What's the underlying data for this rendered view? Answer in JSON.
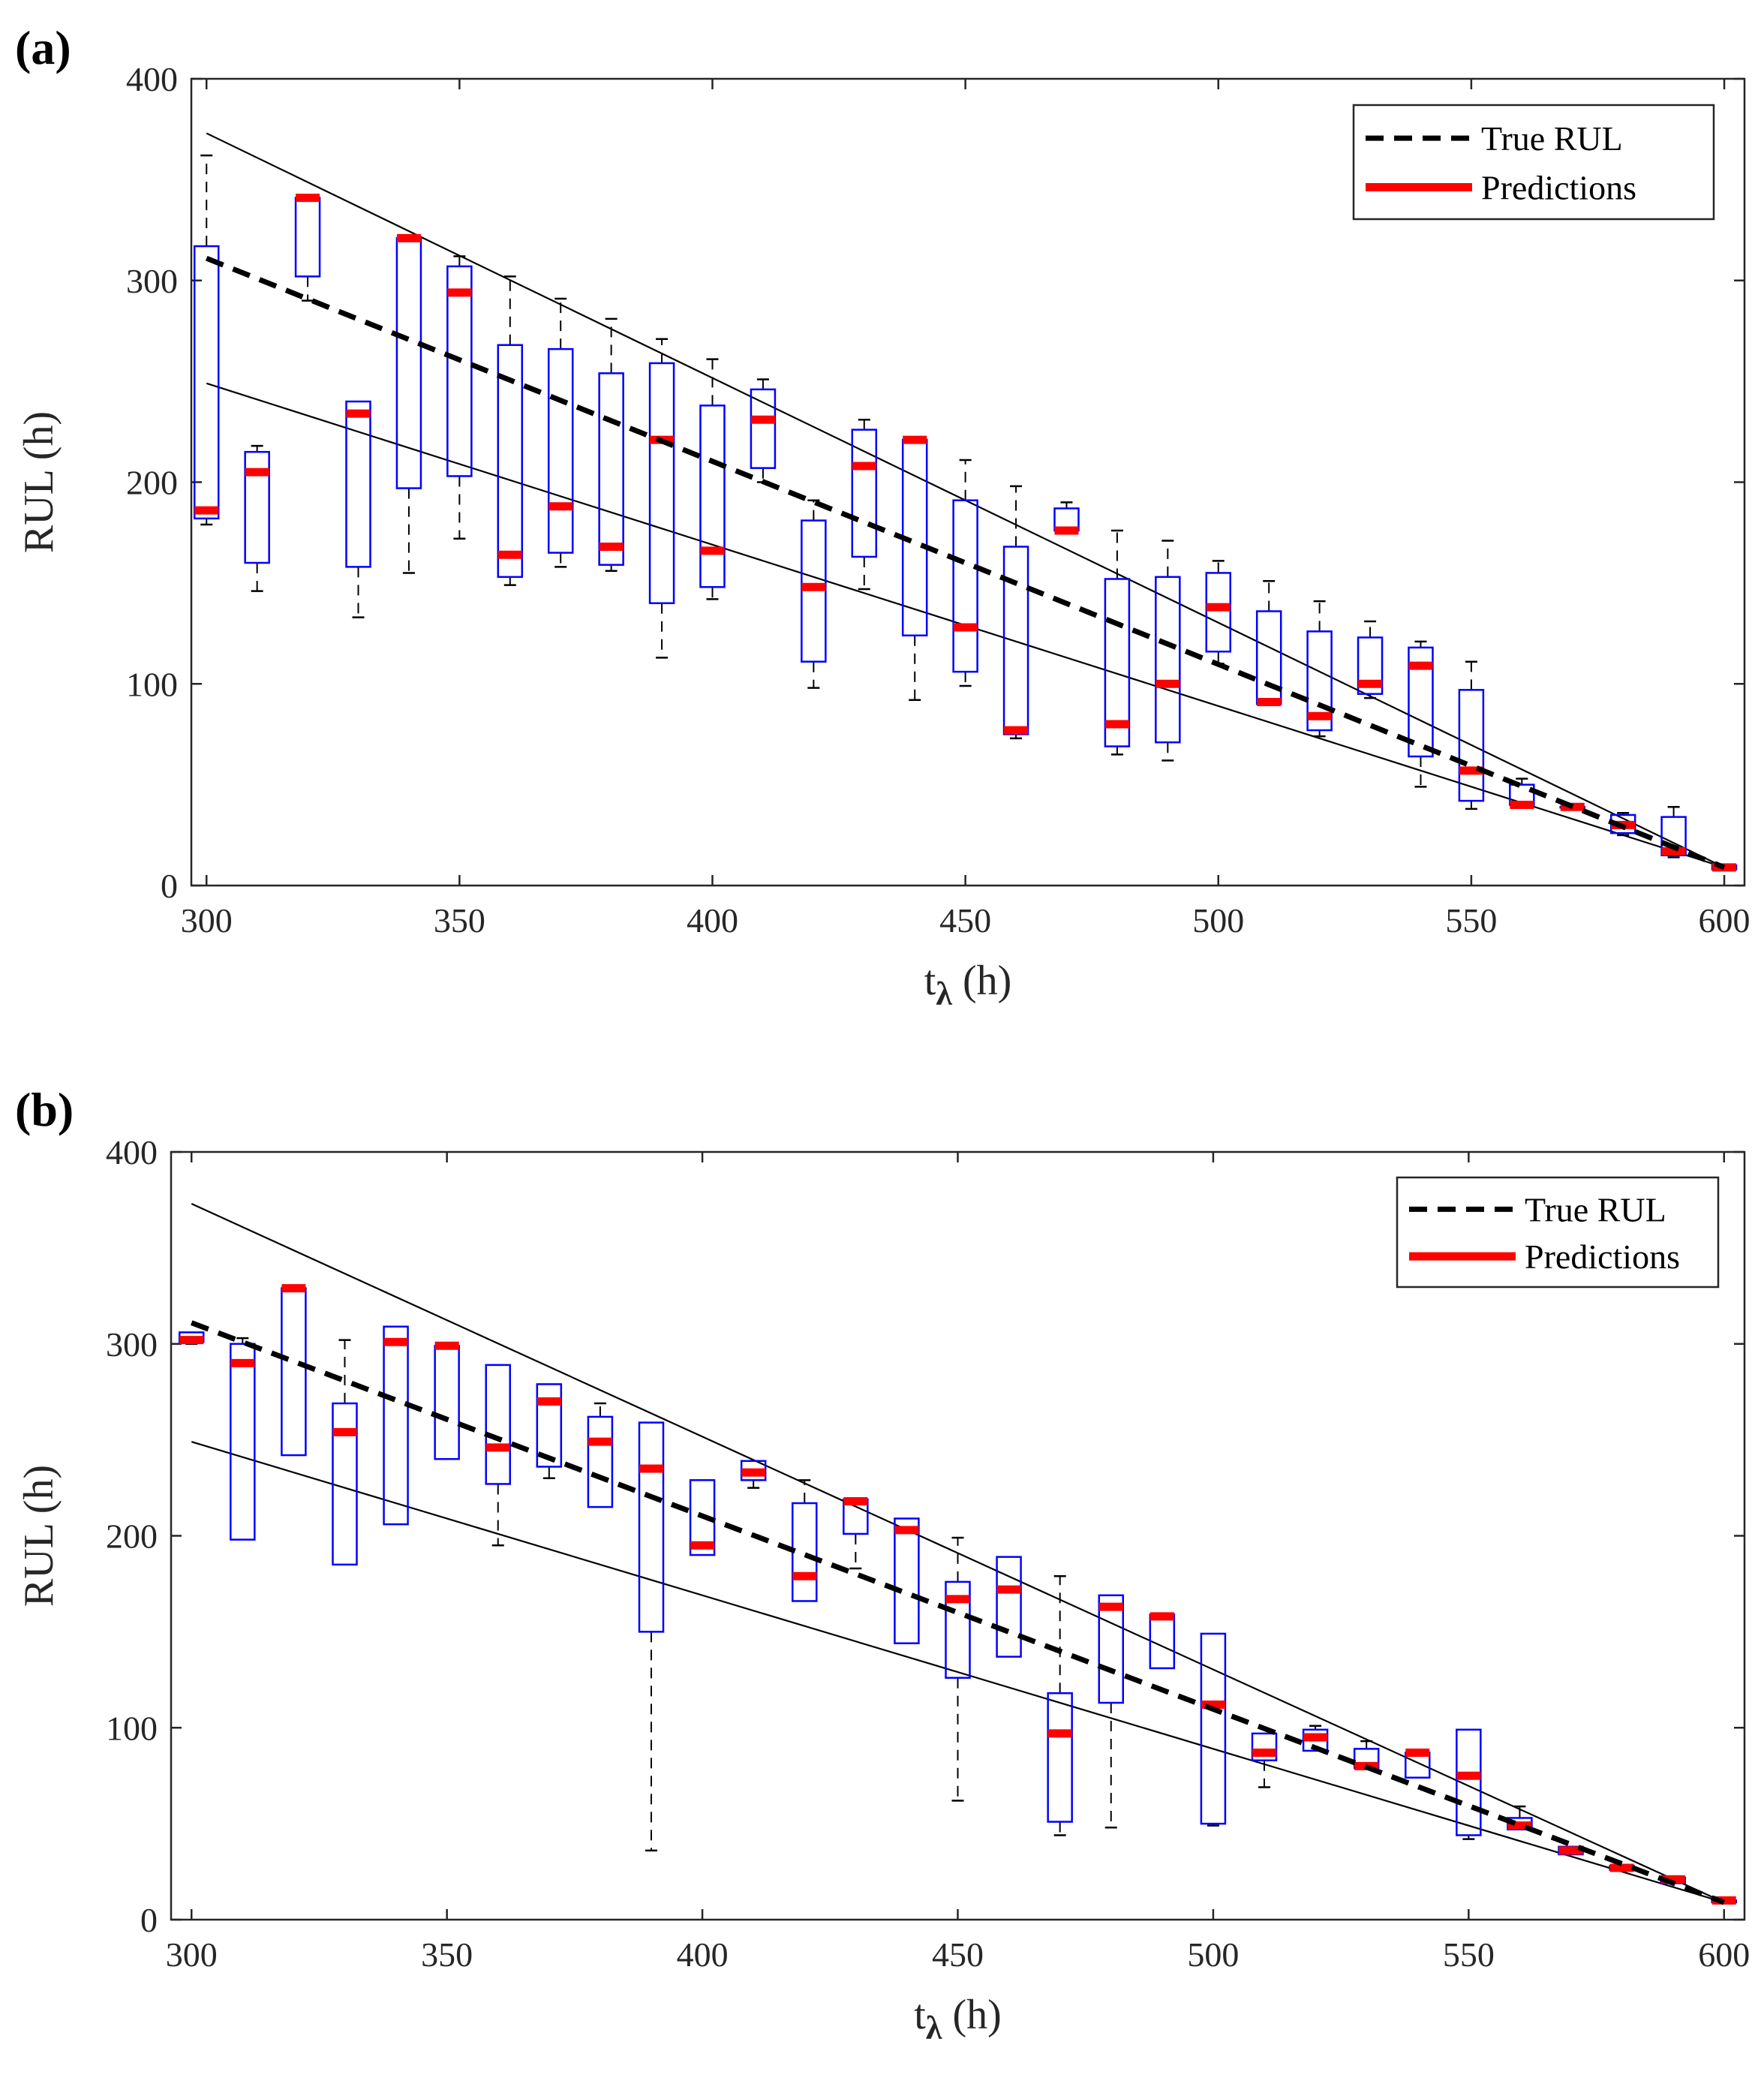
{
  "chart_data": [
    {
      "type": "box",
      "panel_label": "(a)",
      "xlabel": "t",
      "xlabel_sub": "λ",
      "xlabel_unit": " (h)",
      "ylabel": "RUL (h)",
      "xlim": [
        297,
        604
      ],
      "ylim": [
        0,
        400
      ],
      "xticks": [
        300,
        350,
        400,
        450,
        500,
        550,
        600
      ],
      "yticks": [
        0,
        100,
        200,
        300,
        400
      ],
      "legend": {
        "position": "top-right",
        "items": [
          "True RUL",
          "Predictions"
        ]
      },
      "colors": {
        "box": "#0000ff",
        "median": "#ff0000",
        "true": "#000000",
        "whisker": "#000000"
      },
      "true_rul": {
        "x": [
          300,
          600
        ],
        "y": [
          311,
          9
        ]
      },
      "bounds": {
        "upper": {
          "x": [
            300,
            600
          ],
          "y": [
            373,
            9
          ]
        },
        "lower": {
          "x": [
            300,
            600
          ],
          "y": [
            249,
            9
          ]
        }
      },
      "boxes": [
        {
          "x": 300,
          "min": 179,
          "q1": 182,
          "med": 186,
          "q3": 317,
          "max": 362
        },
        {
          "x": 310,
          "min": 146,
          "q1": 160,
          "med": 205,
          "q3": 215,
          "max": 218
        },
        {
          "x": 320,
          "min": 290,
          "q1": 302,
          "med": 341,
          "q3": 341,
          "max": 341
        },
        {
          "x": 330,
          "min": 133,
          "q1": 158,
          "med": 234,
          "q3": 240,
          "max": 240
        },
        {
          "x": 340,
          "min": 155,
          "q1": 197,
          "med": 321,
          "q3": 321,
          "max": 321
        },
        {
          "x": 350,
          "min": 172,
          "q1": 203,
          "med": 294,
          "q3": 307,
          "max": 312
        },
        {
          "x": 360,
          "min": 149,
          "q1": 153,
          "med": 164,
          "q3": 268,
          "max": 302
        },
        {
          "x": 370,
          "min": 158,
          "q1": 165,
          "med": 188,
          "q3": 266,
          "max": 291
        },
        {
          "x": 380,
          "min": 156,
          "q1": 159,
          "med": 168,
          "q3": 254,
          "max": 281
        },
        {
          "x": 390,
          "min": 113,
          "q1": 140,
          "med": 221,
          "q3": 259,
          "max": 271
        },
        {
          "x": 400,
          "min": 142,
          "q1": 148,
          "med": 166,
          "q3": 238,
          "max": 261
        },
        {
          "x": 410,
          "min": 200,
          "q1": 207,
          "med": 231,
          "q3": 246,
          "max": 251
        },
        {
          "x": 420,
          "min": 98,
          "q1": 111,
          "med": 148,
          "q3": 181,
          "max": 191
        },
        {
          "x": 430,
          "min": 147,
          "q1": 163,
          "med": 208,
          "q3": 226,
          "max": 231
        },
        {
          "x": 440,
          "min": 92,
          "q1": 124,
          "med": 221,
          "q3": 221,
          "max": 221
        },
        {
          "x": 450,
          "min": 99,
          "q1": 106,
          "med": 128,
          "q3": 191,
          "max": 211
        },
        {
          "x": 460,
          "min": 73,
          "q1": 75,
          "med": 77,
          "q3": 168,
          "max": 198
        },
        {
          "x": 470,
          "min": 176,
          "q1": 176,
          "med": 176,
          "q3": 187,
          "max": 190
        },
        {
          "x": 480,
          "min": 65,
          "q1": 69,
          "med": 80,
          "q3": 152,
          "max": 176
        },
        {
          "x": 490,
          "min": 62,
          "q1": 71,
          "med": 100,
          "q3": 153,
          "max": 171
        },
        {
          "x": 500,
          "min": 110,
          "q1": 116,
          "med": 138,
          "q3": 155,
          "max": 161
        },
        {
          "x": 510,
          "min": 90,
          "q1": 90,
          "med": 91,
          "q3": 136,
          "max": 151
        },
        {
          "x": 520,
          "min": 74,
          "q1": 77,
          "med": 84,
          "q3": 126,
          "max": 141
        },
        {
          "x": 530,
          "min": 93,
          "q1": 95,
          "med": 100,
          "q3": 123,
          "max": 131
        },
        {
          "x": 540,
          "min": 49,
          "q1": 64,
          "med": 109,
          "q3": 118,
          "max": 121
        },
        {
          "x": 550,
          "min": 38,
          "q1": 42,
          "med": 57,
          "q3": 97,
          "max": 111
        },
        {
          "x": 560,
          "min": 40,
          "q1": 40,
          "med": 40,
          "q3": 50,
          "max": 53
        },
        {
          "x": 570,
          "min": 39,
          "q1": 39,
          "med": 39,
          "q3": 39,
          "max": 39
        },
        {
          "x": 580,
          "min": 25,
          "q1": 26,
          "med": 30,
          "q3": 35,
          "max": 36
        },
        {
          "x": 590,
          "min": 14,
          "q1": 15,
          "med": 17,
          "q3": 34,
          "max": 39
        },
        {
          "x": 600,
          "min": 8,
          "q1": 8,
          "med": 9,
          "q3": 10,
          "max": 10
        }
      ]
    },
    {
      "type": "box",
      "panel_label": "(b)",
      "xlabel": "t",
      "xlabel_sub": "λ",
      "xlabel_unit": " (h)",
      "ylabel": "RUL (h)",
      "xlim": [
        296,
        604
      ],
      "ylim": [
        0,
        400
      ],
      "xticks": [
        300,
        350,
        400,
        450,
        500,
        550,
        600
      ],
      "yticks": [
        0,
        100,
        200,
        300,
        400
      ],
      "legend": {
        "position": "top-right",
        "items": [
          "True RUL",
          "Predictions"
        ]
      },
      "colors": {
        "box": "#0000ff",
        "median": "#ff0000",
        "true": "#000000",
        "whisker": "#000000"
      },
      "true_rul": {
        "x": [
          300,
          600
        ],
        "y": [
          311,
          9
        ]
      },
      "bounds": {
        "upper": {
          "x": [
            300,
            600
          ],
          "y": [
            373,
            9
          ]
        },
        "lower": {
          "x": [
            300,
            600
          ],
          "y": [
            249,
            9
          ]
        }
      },
      "boxes": [
        {
          "x": 300,
          "min": 300,
          "q1": 301,
          "med": 302,
          "q3": 306,
          "max": 306
        },
        {
          "x": 310,
          "min": 198,
          "q1": 198,
          "med": 290,
          "q3": 300,
          "max": 303
        },
        {
          "x": 320,
          "min": 242,
          "q1": 242,
          "med": 329,
          "q3": 329,
          "max": 329
        },
        {
          "x": 330,
          "min": 185,
          "q1": 185,
          "med": 254,
          "q3": 269,
          "max": 302
        },
        {
          "x": 340,
          "min": 206,
          "q1": 206,
          "med": 301,
          "q3": 309,
          "max": 309
        },
        {
          "x": 350,
          "min": 240,
          "q1": 240,
          "med": 299,
          "q3": 299,
          "max": 299
        },
        {
          "x": 360,
          "min": 195,
          "q1": 227,
          "med": 246,
          "q3": 289,
          "max": 289
        },
        {
          "x": 370,
          "min": 230,
          "q1": 236,
          "med": 270,
          "q3": 279,
          "max": 279
        },
        {
          "x": 380,
          "min": 215,
          "q1": 215,
          "med": 249,
          "q3": 262,
          "max": 269
        },
        {
          "x": 390,
          "min": 36,
          "q1": 150,
          "med": 235,
          "q3": 259,
          "max": 259
        },
        {
          "x": 400,
          "min": 190,
          "q1": 190,
          "med": 195,
          "q3": 229,
          "max": 229
        },
        {
          "x": 410,
          "min": 225,
          "q1": 229,
          "med": 233,
          "q3": 239,
          "max": 239
        },
        {
          "x": 420,
          "min": 166,
          "q1": 166,
          "med": 179,
          "q3": 217,
          "max": 229
        },
        {
          "x": 430,
          "min": 183,
          "q1": 201,
          "med": 218,
          "q3": 219,
          "max": 219
        },
        {
          "x": 440,
          "min": 144,
          "q1": 144,
          "med": 203,
          "q3": 209,
          "max": 209
        },
        {
          "x": 450,
          "min": 62,
          "q1": 126,
          "med": 167,
          "q3": 176,
          "max": 199
        },
        {
          "x": 460,
          "min": 137,
          "q1": 137,
          "med": 172,
          "q3": 189,
          "max": 189
        },
        {
          "x": 470,
          "min": 44,
          "q1": 51,
          "med": 97,
          "q3": 118,
          "max": 179
        },
        {
          "x": 480,
          "min": 48,
          "q1": 113,
          "med": 163,
          "q3": 169,
          "max": 169
        },
        {
          "x": 490,
          "min": 131,
          "q1": 131,
          "med": 158,
          "q3": 159,
          "max": 159
        },
        {
          "x": 500,
          "min": 49,
          "q1": 50,
          "med": 112,
          "q3": 149,
          "max": 149
        },
        {
          "x": 510,
          "min": 69,
          "q1": 83,
          "med": 87,
          "q3": 97,
          "max": 97
        },
        {
          "x": 520,
          "min": 88,
          "q1": 88,
          "med": 95,
          "q3": 99,
          "max": 101
        },
        {
          "x": 530,
          "min": 79,
          "q1": 79,
          "med": 80,
          "q3": 89,
          "max": 93
        },
        {
          "x": 540,
          "min": 74,
          "q1": 74,
          "med": 87,
          "q3": 87,
          "max": 87
        },
        {
          "x": 550,
          "min": 42,
          "q1": 44,
          "med": 75,
          "q3": 99,
          "max": 99
        },
        {
          "x": 560,
          "min": 47,
          "q1": 47,
          "med": 49,
          "q3": 53,
          "max": 59
        },
        {
          "x": 570,
          "min": 34,
          "q1": 34,
          "med": 36,
          "q3": 38,
          "max": 38
        },
        {
          "x": 580,
          "min": 26,
          "q1": 26,
          "med": 27,
          "q3": 28,
          "max": 28
        },
        {
          "x": 590,
          "min": 19,
          "q1": 19,
          "med": 21,
          "q3": 22,
          "max": 22
        },
        {
          "x": 600,
          "min": 9,
          "q1": 9,
          "med": 10,
          "q3": 10,
          "max": 10
        }
      ]
    }
  ]
}
